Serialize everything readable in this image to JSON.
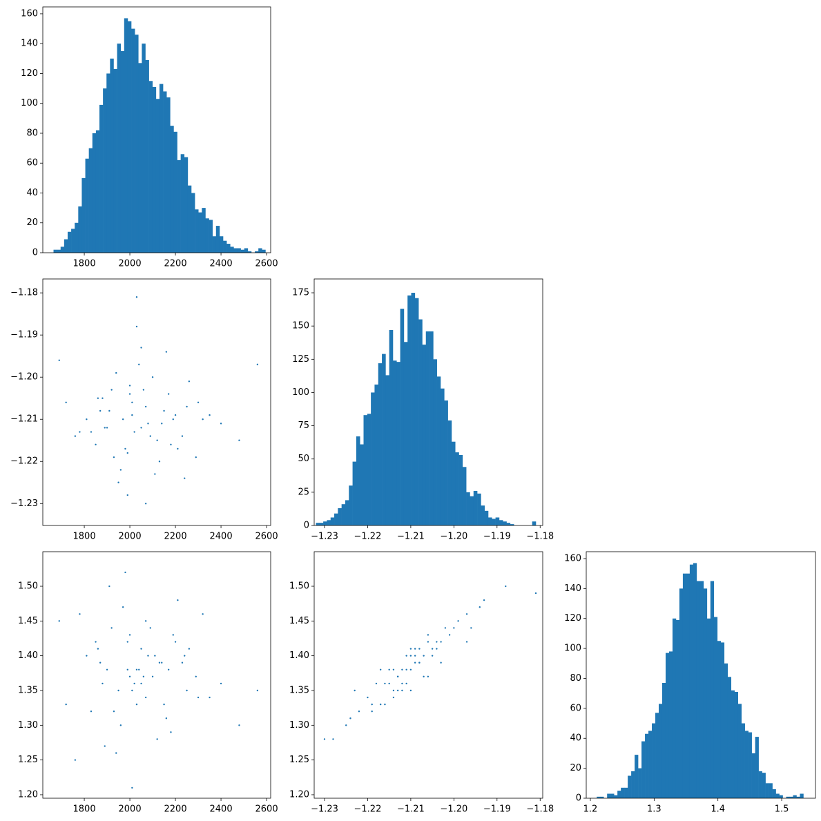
{
  "chart_data": [
    {
      "type": "histogram",
      "color": "#1f77b4",
      "bins": [
        1665,
        1680.5,
        1696,
        1711.5,
        1727,
        1742.5,
        1758,
        1773.5,
        1789,
        1804.5,
        1820,
        1835.5,
        1851,
        1866.5,
        1882,
        1897.5,
        1913,
        1928.5,
        1944,
        1959.5,
        1975,
        1990.5,
        2006,
        2021.5,
        2037,
        2052.5,
        2068,
        2083.5,
        2099,
        2114.5,
        2130,
        2145.5,
        2161,
        2176.5,
        2192,
        2207.5,
        2223,
        2238.5,
        2254,
        2269.5,
        2285,
        2300.5,
        2316,
        2331.5,
        2347,
        2362.5,
        2378,
        2393.5,
        2409,
        2424.5,
        2440,
        2455.5,
        2471,
        2486.5,
        2502,
        2517.5,
        2533,
        2548.5,
        2564,
        2579.5,
        2595
      ],
      "values": [
        2,
        2,
        4,
        9,
        14,
        16,
        20,
        31,
        50,
        63,
        70,
        80,
        82,
        99,
        110,
        120,
        130,
        123,
        140,
        135,
        157,
        155,
        150,
        146,
        127,
        140,
        129,
        115,
        111,
        103,
        113,
        108,
        104,
        85,
        81,
        62,
        66,
        64,
        45,
        40,
        29,
        27,
        30,
        23,
        22,
        11,
        18,
        11,
        8,
        6,
        4,
        3,
        3,
        2,
        3,
        1,
        0,
        1,
        3,
        2
      ],
      "xlim": [
        1618,
        2618
      ],
      "xticks": [
        1800,
        2000,
        2200,
        2400,
        2600
      ],
      "ylim": [
        0,
        164.6
      ],
      "yticks": [
        0,
        20,
        40,
        60,
        80,
        100,
        120,
        140,
        160
      ]
    },
    {
      "type": "scatter",
      "color": "#1f77b4",
      "x": [
        1880,
        2050,
        1990,
        2150,
        1920,
        2230,
        2010,
        1850,
        2100,
        1960,
        2080,
        2300,
        1780,
        2040,
        1930,
        2190,
        2000,
        1870,
        2120,
        2260,
        1950,
        2070,
        2020,
        1810,
        2160,
        1900,
        2210,
        2350,
        1990,
        2060,
        1720,
        2130,
        1940,
        2090,
        2400,
        1860,
        2030,
        2180,
        1970,
        2250,
        2110,
        1830,
        2000,
        2290,
        1910,
        2050,
        2140,
        1760,
        2070,
        2200,
        2480,
        1690,
        2010,
        2560,
        1980,
        2170,
        1890,
        2240,
        2030,
        2320
      ],
      "y": [
        -1.205,
        -1.212,
        -1.218,
        -1.208,
        -1.203,
        -1.214,
        -1.209,
        -1.216,
        -1.2,
        -1.222,
        -1.211,
        -1.206,
        -1.213,
        -1.197,
        -1.219,
        -1.21,
        -1.204,
        -1.208,
        -1.215,
        -1.201,
        -1.225,
        -1.207,
        -1.213,
        -1.21,
        -1.194,
        -1.212,
        -1.217,
        -1.209,
        -1.228,
        -1.203,
        -1.206,
        -1.22,
        -1.199,
        -1.214,
        -1.211,
        -1.205,
        -1.188,
        -1.216,
        -1.21,
        -1.207,
        -1.223,
        -1.213,
        -1.202,
        -1.219,
        -1.208,
        -1.193,
        -1.211,
        -1.214,
        -1.23,
        -1.209,
        -1.215,
        -1.196,
        -1.206,
        -1.197,
        -1.217,
        -1.204,
        -1.212,
        -1.224,
        -1.181,
        -1.21
      ],
      "xlim": [
        1618,
        2618
      ],
      "xticks": [
        1800,
        2000,
        2200,
        2400,
        2600
      ],
      "ylim": [
        -1.2352,
        -1.1767
      ],
      "yticks": [
        {
          "value": -1.23,
          "label": "−1.23"
        },
        {
          "value": -1.22,
          "label": "−1.22"
        },
        {
          "value": -1.21,
          "label": "−1.21"
        },
        {
          "value": -1.2,
          "label": "−1.20"
        },
        {
          "value": -1.19,
          "label": "−1.19"
        },
        {
          "value": -1.18,
          "label": "−1.18"
        }
      ]
    },
    {
      "type": "histogram",
      "color": "#1f77b4",
      "bins": [
        -1.232,
        -1.23115,
        -1.2303,
        -1.22945,
        -1.2286,
        -1.22775,
        -1.2269,
        -1.22605,
        -1.2252,
        -1.22435,
        -1.2235,
        -1.22265,
        -1.2218,
        -1.22095,
        -1.2201,
        -1.21925,
        -1.2184,
        -1.21755,
        -1.2167,
        -1.21585,
        -1.215,
        -1.21415,
        -1.2133,
        -1.21245,
        -1.2116,
        -1.21075,
        -1.2099,
        -1.20905,
        -1.2082,
        -1.20735,
        -1.2065,
        -1.20565,
        -1.2048,
        -1.20395,
        -1.2031,
        -1.20225,
        -1.2014,
        -1.20055,
        -1.1997,
        -1.19885,
        -1.198,
        -1.19715,
        -1.1963,
        -1.19545,
        -1.1946,
        -1.19375,
        -1.1929,
        -1.19205,
        -1.1912,
        -1.19035,
        -1.1895,
        -1.18865,
        -1.1878,
        -1.18695,
        -1.1861,
        -1.18525,
        -1.1844,
        -1.18355,
        -1.1827,
        -1.18185,
        -1.181
      ],
      "values": [
        2,
        2,
        3,
        4,
        6,
        9,
        13,
        16,
        19,
        30,
        48,
        67,
        61,
        83,
        84,
        100,
        106,
        122,
        129,
        113,
        147,
        124,
        123,
        163,
        138,
        173,
        175,
        171,
        155,
        136,
        146,
        146,
        125,
        112,
        103,
        94,
        79,
        63,
        55,
        53,
        44,
        25,
        22,
        26,
        24,
        15,
        11,
        6,
        5,
        6,
        4,
        3,
        2,
        1,
        0,
        0,
        0,
        0,
        0,
        3
      ],
      "xlim": [
        -1.2324,
        -1.1794
      ],
      "xticks": [
        {
          "value": -1.23,
          "label": "−1.23"
        },
        {
          "value": -1.22,
          "label": "−1.22"
        },
        {
          "value": -1.21,
          "label": "−1.21"
        },
        {
          "value": -1.2,
          "label": "−1.20"
        },
        {
          "value": -1.19,
          "label": "−1.19"
        },
        {
          "value": -1.18,
          "label": "−1.18"
        }
      ],
      "ylim": [
        0,
        185.4
      ],
      "yticks": [
        0,
        25,
        50,
        75,
        100,
        125,
        150,
        175
      ]
    },
    {
      "type": "scatter",
      "color": "#1f77b4",
      "x": [
        1880,
        2050,
        1990,
        2150,
        1920,
        2230,
        2010,
        1850,
        2100,
        1960,
        2080,
        2300,
        1780,
        2040,
        1930,
        2190,
        2000,
        1870,
        2120,
        2260,
        1950,
        2070,
        2020,
        1810,
        2160,
        1900,
        2210,
        2350,
        1990,
        2060,
        1720,
        2130,
        1940,
        2090,
        2400,
        1860,
        2030,
        2180,
        1970,
        2250,
        2110,
        1830,
        2000,
        2290,
        1910,
        2050,
        2140,
        1760,
        2070,
        2200,
        2480,
        1690,
        2010,
        2560,
        1980,
        2170,
        1890,
        2240,
        2030,
        2320
      ],
      "y": [
        1.36,
        1.41,
        1.38,
        1.33,
        1.44,
        1.39,
        1.35,
        1.42,
        1.37,
        1.3,
        1.4,
        1.34,
        1.46,
        1.38,
        1.32,
        1.43,
        1.37,
        1.39,
        1.28,
        1.41,
        1.35,
        1.45,
        1.36,
        1.4,
        1.31,
        1.38,
        1.48,
        1.34,
        1.42,
        1.37,
        1.33,
        1.39,
        1.26,
        1.44,
        1.36,
        1.41,
        1.38,
        1.29,
        1.47,
        1.35,
        1.4,
        1.32,
        1.43,
        1.37,
        1.5,
        1.36,
        1.39,
        1.25,
        1.34,
        1.42,
        1.3,
        1.45,
        1.21,
        1.35,
        1.52,
        1.38,
        1.27,
        1.4,
        1.33,
        1.46
      ],
      "xlim": [
        1618,
        2618
      ],
      "xticks": [
        1800,
        2000,
        2200,
        2400,
        2600
      ],
      "ylim": [
        1.195,
        1.5497
      ],
      "yticks": [
        {
          "value": 1.2,
          "label": "1.20"
        },
        1.25,
        {
          "value": 1.3,
          "label": "1.30"
        },
        1.35,
        {
          "value": 1.4,
          "label": "1.40"
        },
        1.45,
        {
          "value": 1.5,
          "label": "1.50"
        }
      ]
    },
    {
      "type": "scatter",
      "color": "#1f77b4",
      "x": [
        -1.205,
        -1.212,
        -1.218,
        -1.208,
        -1.203,
        -1.214,
        -1.209,
        -1.216,
        -1.2,
        -1.222,
        -1.211,
        -1.206,
        -1.213,
        -1.197,
        -1.219,
        -1.21,
        -1.204,
        -1.208,
        -1.215,
        -1.201,
        -1.225,
        -1.207,
        -1.213,
        -1.21,
        -1.194,
        -1.212,
        -1.217,
        -1.209,
        -1.228,
        -1.203,
        -1.206,
        -1.22,
        -1.199,
        -1.214,
        -1.211,
        -1.205,
        -1.188,
        -1.216,
        -1.21,
        -1.207,
        -1.223,
        -1.213,
        -1.202,
        -1.219,
        -1.208,
        -1.193,
        -1.211,
        -1.214,
        -1.23,
        -1.209,
        -1.215,
        -1.196,
        -1.206,
        -1.197,
        -1.217,
        -1.204,
        -1.212,
        -1.224,
        -1.181,
        -1.21
      ],
      "y": [
        1.41,
        1.36,
        1.36,
        1.41,
        1.42,
        1.34,
        1.39,
        1.33,
        1.44,
        1.32,
        1.4,
        1.37,
        1.37,
        1.46,
        1.33,
        1.35,
        1.42,
        1.39,
        1.38,
        1.43,
        1.3,
        1.4,
        1.35,
        1.41,
        1.47,
        1.38,
        1.33,
        1.4,
        1.28,
        1.39,
        1.42,
        1.34,
        1.45,
        1.38,
        1.36,
        1.4,
        1.5,
        1.36,
        1.4,
        1.37,
        1.35,
        1.37,
        1.44,
        1.32,
        1.39,
        1.48,
        1.38,
        1.35,
        1.28,
        1.41,
        1.36,
        1.44,
        1.43,
        1.42,
        1.38,
        1.41,
        1.35,
        1.31,
        1.49,
        1.38
      ],
      "xlim": [
        -1.2324,
        -1.1794
      ],
      "xticks": [
        {
          "value": -1.23,
          "label": "−1.23"
        },
        {
          "value": -1.22,
          "label": "−1.22"
        },
        {
          "value": -1.21,
          "label": "−1.21"
        },
        {
          "value": -1.2,
          "label": "−1.20"
        },
        {
          "value": -1.19,
          "label": "−1.19"
        },
        {
          "value": -1.18,
          "label": "−1.18"
        }
      ],
      "ylim": [
        1.195,
        1.5497
      ],
      "yticks": [
        {
          "value": 1.2,
          "label": "1.20"
        },
        1.25,
        {
          "value": 1.3,
          "label": "1.30"
        },
        1.35,
        {
          "value": 1.4,
          "label": "1.40"
        },
        1.45,
        {
          "value": 1.5,
          "label": "1.50"
        }
      ]
    },
    {
      "type": "histogram",
      "color": "#1f77b4",
      "bins": [
        1.21,
        1.2154,
        1.2208,
        1.2262,
        1.2316,
        1.237,
        1.2424,
        1.2478,
        1.2532,
        1.2586,
        1.264,
        1.2694,
        1.2748,
        1.2802,
        1.2856,
        1.291,
        1.2964,
        1.3018,
        1.3072,
        1.3126,
        1.318,
        1.3234,
        1.3288,
        1.3342,
        1.3396,
        1.345,
        1.3504,
        1.3558,
        1.3612,
        1.3666,
        1.372,
        1.3774,
        1.3828,
        1.3882,
        1.3936,
        1.399,
        1.4044,
        1.4098,
        1.4152,
        1.4206,
        1.426,
        1.4314,
        1.4368,
        1.4422,
        1.4476,
        1.453,
        1.4584,
        1.4638,
        1.4692,
        1.4746,
        1.48,
        1.4854,
        1.4908,
        1.4962,
        1.5016,
        1.507,
        1.5124,
        1.5178,
        1.5232,
        1.5286,
        1.534
      ],
      "values": [
        1,
        1,
        0,
        3,
        3,
        2,
        5,
        7,
        7,
        15,
        18,
        29,
        20,
        38,
        43,
        45,
        50,
        57,
        63,
        77,
        97,
        98,
        120,
        119,
        140,
        150,
        150,
        156,
        157,
        145,
        145,
        140,
        120,
        145,
        121,
        105,
        104,
        90,
        81,
        72,
        71,
        63,
        50,
        45,
        44,
        30,
        41,
        18,
        17,
        10,
        10,
        6,
        3,
        2,
        0,
        1,
        1,
        2,
        1,
        3
      ],
      "xlim": [
        1.1935,
        1.553
      ],
      "xticks": [
        1.2,
        1.3,
        1.4,
        1.5
      ],
      "ylim": [
        0,
        164.6
      ],
      "yticks": [
        0,
        20,
        40,
        60,
        80,
        100,
        120,
        140,
        160
      ]
    }
  ]
}
